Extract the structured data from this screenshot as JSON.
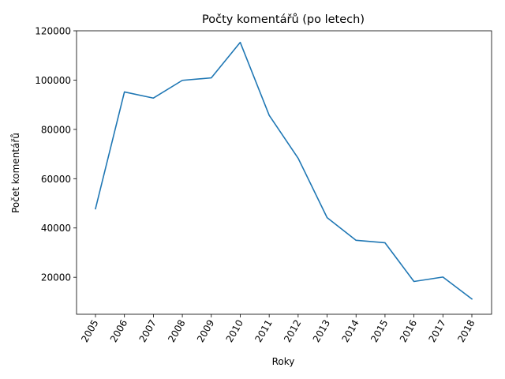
{
  "chart_data": {
    "type": "line",
    "title": "Počty komentářů (po letech)",
    "xlabel": "Roky",
    "ylabel": "Počet komentářů",
    "x": [
      "2005",
      "2006",
      "2007",
      "2008",
      "2009",
      "2010",
      "2011",
      "2012",
      "2013",
      "2014",
      "2015",
      "2016",
      "2017",
      "2018"
    ],
    "series": [
      {
        "values": [
          47800,
          95200,
          92700,
          99900,
          100900,
          115300,
          85700,
          68300,
          44200,
          35000,
          34000,
          18300,
          20100,
          11200
        ]
      }
    ],
    "yticks": [
      20000,
      40000,
      60000,
      80000,
      100000,
      120000
    ],
    "ylim": [
      5000,
      120000
    ],
    "grid": false,
    "legend": "none",
    "colors": {
      "line": "#1f77b4"
    }
  }
}
